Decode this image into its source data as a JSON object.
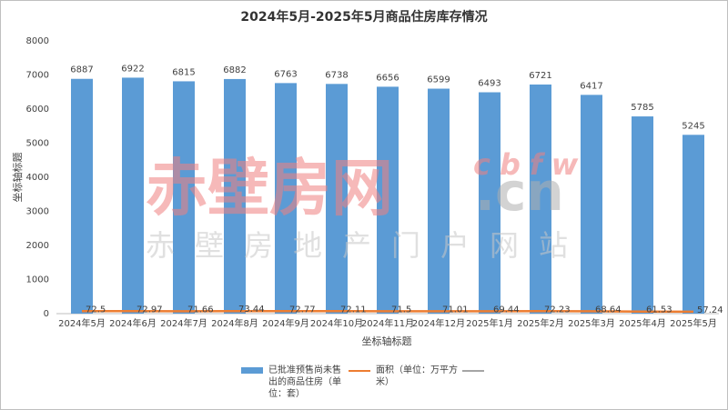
{
  "chart_data": {
    "type": "bar_line",
    "title": "2024年5月-2025年5月商品住房库存情况",
    "xlabel": "坐标轴标题",
    "ylabel": "坐标轴标题",
    "categories": [
      "2024年5月",
      "2024年6月",
      "2024年7月",
      "2024年8月",
      "2024年9月",
      "2024年10月",
      "2024年11月",
      "2024年12月",
      "2025年1月",
      "2025年2月",
      "2025年3月",
      "2025年4月",
      "2025年5月"
    ],
    "series": [
      {
        "name": "已批准预售尚未售出的商品住房（单位：套）",
        "type": "bar",
        "color": "#5b9bd5",
        "values": [
          6887,
          6922,
          6815,
          6882,
          6763,
          6738,
          6656,
          6599,
          6493,
          6721,
          6417,
          5785,
          5245
        ]
      },
      {
        "name": "面积（单位：万平方米）",
        "type": "line",
        "color": "#ed7d31",
        "values": [
          72.5,
          72.97,
          71.66,
          73.44,
          72.77,
          72.11,
          71.5,
          71.01,
          69.44,
          72.23,
          68.64,
          61.53,
          57.24
        ]
      }
    ],
    "ylim": [
      0,
      8000
    ],
    "yticks": [
      0,
      1000,
      2000,
      3000,
      4000,
      5000,
      6000,
      7000,
      8000
    ],
    "grid": false,
    "watermark": {
      "main": "赤壁房网",
      "domain": ".cn",
      "letters": "cbfw",
      "subtitle": "赤壁房地产门户网站"
    }
  }
}
